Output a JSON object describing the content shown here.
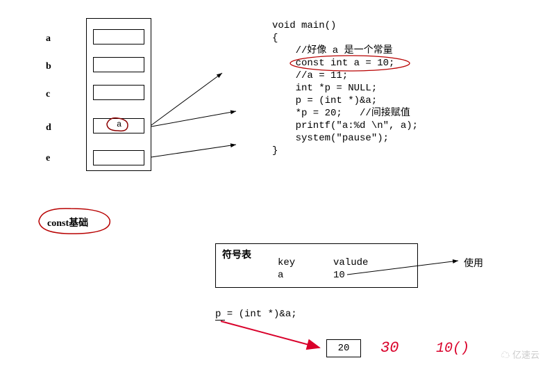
{
  "labels": {
    "a": "a",
    "b": "b",
    "c": "c",
    "d": "d",
    "e": "e"
  },
  "stack": {
    "border_color": "#000000",
    "cell_border_color": "#000000",
    "cell_bg": "#ffffff",
    "d_content": "a",
    "d_circle_color": "#8b0000"
  },
  "code": {
    "font": "Courier New",
    "lines": [
      "void main()",
      "{",
      "    //好像 a 是一个常量",
      "    const int a = 10;",
      "    //a = 11;",
      "    int *p = NULL;",
      "    p = (int *)&a;",
      "",
      "    *p = 20;   //间接赋值",
      "",
      "    printf(\"a:%d \\n\", a);",
      "    system(\"pause\");",
      "}"
    ],
    "highlight_line_index": 3,
    "highlight_color": "#b80000"
  },
  "title": {
    "text": "const基础",
    "circle_color": "#b80000"
  },
  "table": {
    "heading": "符号表",
    "col1": "key",
    "col2": "valude",
    "k": "a",
    "v": "10",
    "use_label": "使用",
    "border_color": "#000000"
  },
  "bottom": {
    "expr": "p = (int *)&a;",
    "box_value": "20",
    "hand1": "30",
    "hand2": "10()",
    "arrow_color": "#d9002a",
    "hand_color": "#d9002a",
    "box_border": "#000000"
  },
  "colors": {
    "arrow": "#000000",
    "bg": "#ffffff",
    "text": "#000000"
  },
  "watermark": "亿速云"
}
